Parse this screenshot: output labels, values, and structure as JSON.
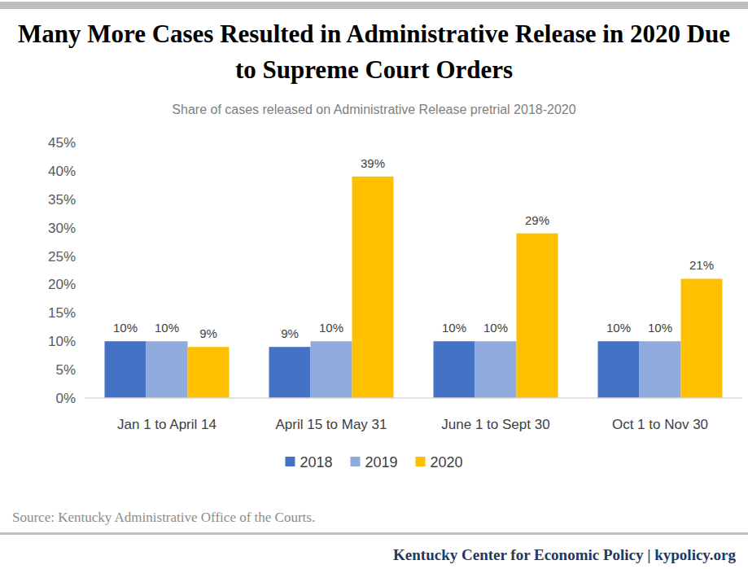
{
  "chart_data": {
    "type": "bar",
    "title": "Many More Cases Resulted in Administrative Release in 2020 Due to Supreme Court Orders",
    "subtitle": "Share of cases released on Administrative Release pretrial 2018-2020",
    "categories": [
      "Jan 1 to April 14",
      "April 15 to May 31",
      "June 1 to Sept 30",
      "Oct 1 to Nov 30"
    ],
    "series": [
      {
        "name": "2018",
        "color": "#4472c4",
        "values": [
          10,
          9,
          10,
          10
        ],
        "value_labels": [
          "10%",
          "9%",
          "10%",
          "10%"
        ]
      },
      {
        "name": "2019",
        "color": "#8faadc",
        "values": [
          10,
          10,
          10,
          10
        ],
        "value_labels": [
          "10%",
          "10%",
          "10%",
          "10%"
        ]
      },
      {
        "name": "2020",
        "color": "#ffc000",
        "values": [
          9,
          39,
          29,
          21
        ],
        "value_labels": [
          "9%",
          "39%",
          "29%",
          "21%"
        ]
      }
    ],
    "ylim": [
      0,
      45
    ],
    "yticks": [
      {
        "value": 0,
        "label": "0%"
      },
      {
        "value": 5,
        "label": "5%"
      },
      {
        "value": 10,
        "label": "10%"
      },
      {
        "value": 15,
        "label": "15%"
      },
      {
        "value": 20,
        "label": "20%"
      },
      {
        "value": 25,
        "label": "25%"
      },
      {
        "value": 30,
        "label": "30%"
      },
      {
        "value": 35,
        "label": "35%"
      },
      {
        "value": 40,
        "label": "40%"
      },
      {
        "value": 45,
        "label": "45%"
      }
    ],
    "grid": false,
    "data_labels": true,
    "legend": "bottom",
    "source": "Source: Kentucky Administrative Office of the Courts.",
    "footer": "Kentucky Center for Economic Policy | kypolicy.org"
  }
}
